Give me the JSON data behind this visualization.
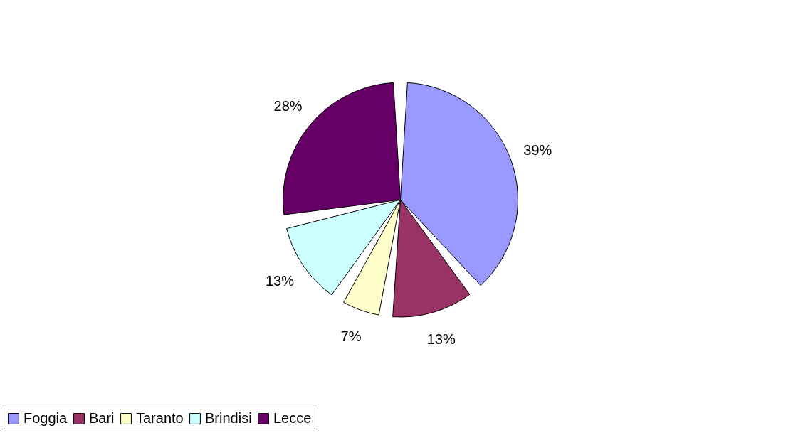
{
  "chart_data": {
    "type": "pie",
    "categories": [
      "Foggia",
      "Bari",
      "Taranto",
      "Brindisi",
      "Lecce"
    ],
    "values": [
      39,
      13,
      7,
      13,
      28
    ],
    "colors": [
      "#9999ff",
      "#993366",
      "#ffffcc",
      "#ccffff",
      "#660066"
    ],
    "value_labels": [
      "39%",
      "13%",
      "7%",
      "13%",
      "28%"
    ],
    "legend": "bottom"
  }
}
